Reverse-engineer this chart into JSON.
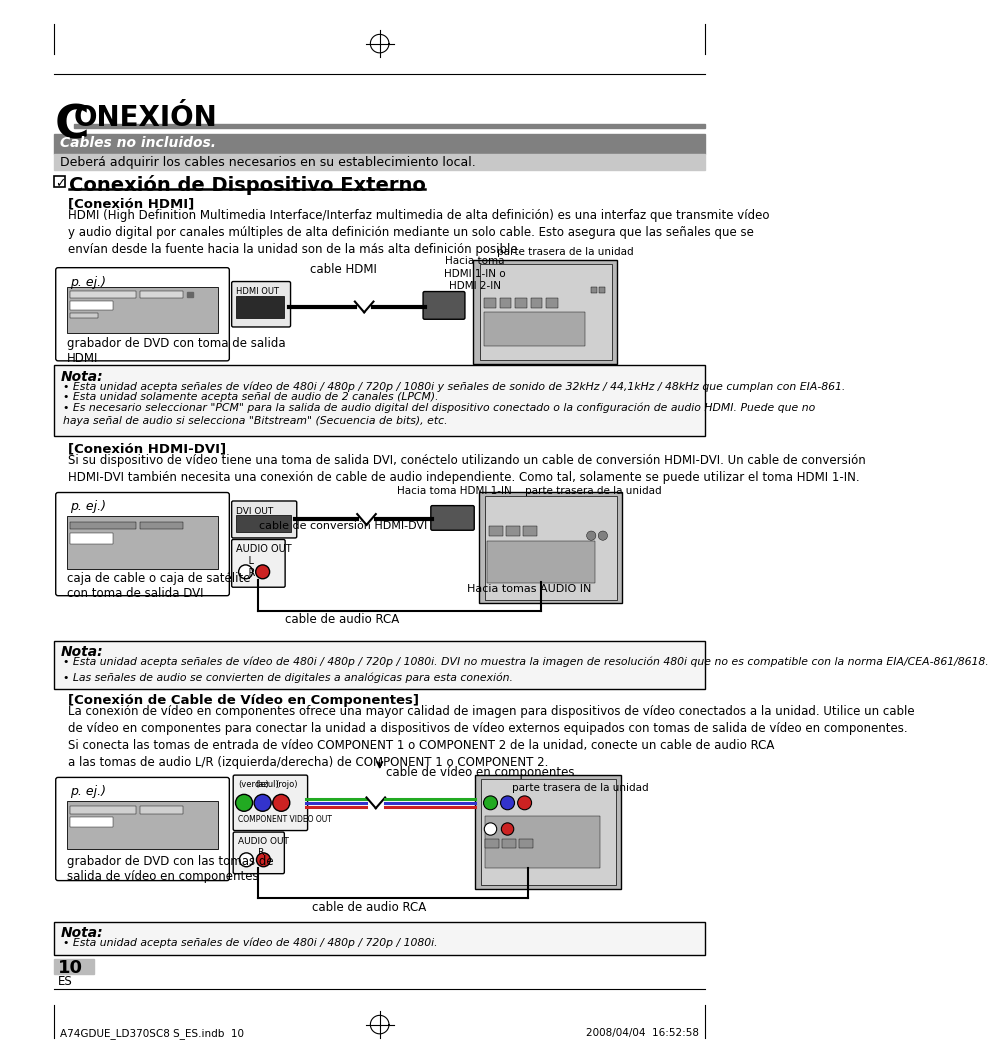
{
  "page_bg": "#ffffff",
  "title_letter": "C",
  "title_text": "ONEXIÓN",
  "cables_header": "Cables no incluidos.",
  "cables_sub": "Deberá adquirir los cables necesarios en su establecimiento local.",
  "section_title": "Conexión de Dispositivo Externo",
  "hdmi_heading": "[Conexión HDMI]",
  "hdmi_body": "HDMI (High Definition Multimedia Interface/Interfaz multimedia de alta definición) es una interfaz que transmite vídeo\ny audio digital por canales múltiples de alta definición mediante un solo cable. Esto asegura que las señales que se\nenvían desde la fuente hacia la unidad son de la más alta definición posible.",
  "hdmi_label1": "parte trasera de la unidad",
  "hdmi_label2": "Hacia toma\nHDMI 1-IN o\nHDMI 2-IN",
  "hdmi_cable_label": "cable HDMI",
  "hdmi_out_label": "HDMI OUT",
  "dvd_label": "p. ej.)",
  "dvd_sublabel": "grabador de DVD con toma de salida\nHDMI",
  "nota1_title": "Nota:",
  "nota1_bullets": [
    "Esta unidad acepta señales de vídeo de 480i / 480p / 720p / 1080i y señales de sonido de 32kHz / 44,1kHz / 48kHz que cumplan con EIA-861.",
    "Esta unidad solamente acepta señal de audio de 2 canales (LPCM).",
    "Es necesario seleccionar \"PCM\" para la salida de audio digital del dispositivo conectado o la configuración de audio HDMI. Puede que no\nhaya señal de audio si selecciona \"Bitstream\" (Secuencia de bits), etc."
  ],
  "hdmidvi_heading": "[Conexión HDMI-DVI]",
  "hdmidvi_body": "Si su dispositivo de vídeo tiene una toma de salida DVI, conéctelo utilizando un cable de conversión HDMI-DVI. Un cable de conversión\nHDMI-DVI también necesita una conexión de cable de audio independiente. Como tal, solamente se puede utilizar el toma HDMI 1-IN.",
  "hdmidvi_label1": "Hacia toma HDMI 1-IN",
  "hdmidvi_label2": "parte trasera de la unidad",
  "hdmidvi_cable_label": "cable de conversión HDMI-DVI",
  "hdmidvi_out_label": "DVI OUT",
  "hdmidvi_audio_label": "AUDIO OUT\n    L\n    R",
  "hdmidvi_audio_cable": "cable de audio RCA",
  "hdmidvi_audio_in": "Hacia tomas AUDIO IN",
  "satbox_label": "p. ej.)",
  "satbox_sublabel": "caja de cable o caja de satélite\ncon toma de salida DVI",
  "nota2_title": "Nota:",
  "nota2_bullets": [
    "Esta unidad acepta señales de vídeo de 480i / 480p / 720p / 1080i. DVI no muestra la imagen de resolución 480i que no es compatible con la norma EIA/CEA-861/8618.",
    "Las señales de audio se convierten de digitales a analógicas para esta conexión."
  ],
  "component_heading": "[Conexión de Cable de Vídeo en Componentes]",
  "component_body": "La conexión de vídeo en componentes ofrece una mayor calidad de imagen para dispositivos de vídeo conectados a la unidad. Utilice un cable\nde vídeo en componentes para conectar la unidad a dispositivos de vídeo externos equipados con tomas de salida de vídeo en componentes.\nSi conecta las tomas de entrada de vídeo COMPONENT 1 o COMPONENT 2 de la unidad, conecte un cable de audio RCA\na las tomas de audio L/R (izquierda/derecha) de COMPONENT 1 o COMPONENT 2.",
  "component_cable_label": "cable de vídeo en componentes",
  "component_audio_label": "cable de audio RCA",
  "component_back_label": "parte trasera de la unidad",
  "component_out_label": "COMPONENT VIDEO OUT",
  "component_audio_out": "AUDIO OUT\n       R",
  "component_verde": "(verde)",
  "component_azul": "(azul)",
  "component_rojo": "(rojo)",
  "dvd2_label": "p. ej.)",
  "dvd2_sublabel": "grabador de DVD con las tomas de\nsalida de vídeo en componentes",
  "nota3_title": "Nota:",
  "nota3_bullets": [
    "Esta unidad acepta señales de vídeo de 480i / 480p / 720p / 1080i."
  ],
  "page_num": "10",
  "page_lang": "ES",
  "footer_left": "A74GDUE_LD370SC8 S_ES.indb  10",
  "footer_right": "2008/04/04  16:52:58",
  "gray_header_color": "#808080",
  "light_gray_color": "#c8c8c8",
  "nota_bg": "#f5f5f5",
  "cables_header_bg": "#808080",
  "cables_sub_bg": "#c8c8c8"
}
